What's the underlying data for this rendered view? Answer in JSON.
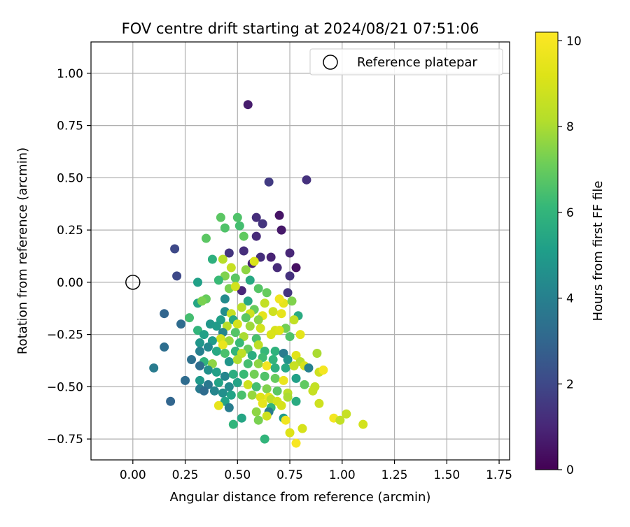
{
  "chart_data": {
    "type": "scatter",
    "title": "FOV centre drift starting at 2024/08/21 07:51:06",
    "xlabel": "Angular distance from reference (arcmin)",
    "ylabel": "Rotation from reference (arcmin)",
    "xlim": [
      -0.2,
      1.8
    ],
    "ylim": [
      -0.85,
      1.15
    ],
    "xticks": [
      0.0,
      0.25,
      0.5,
      0.75,
      1.0,
      1.25,
      1.5,
      1.75
    ],
    "xtick_labels": [
      "0.00",
      "0.25",
      "0.50",
      "0.75",
      "1.00",
      "1.25",
      "1.50",
      "1.75"
    ],
    "yticks": [
      -0.75,
      -0.5,
      -0.25,
      0.0,
      0.25,
      0.5,
      0.75,
      1.0
    ],
    "ytick_labels": [
      "−0.75",
      "−0.50",
      "−0.25",
      "0.00",
      "0.25",
      "0.50",
      "0.75",
      "1.00"
    ],
    "grid": true,
    "legend": {
      "position": "top-right",
      "entries": [
        "Reference platepar"
      ]
    },
    "reference_point": {
      "x": 0.0,
      "y": 0.0
    },
    "colorbar": {
      "label": "Hours from first FF file",
      "cmap": "viridis",
      "range": [
        0,
        10.2
      ],
      "ticks": [
        0,
        2,
        4,
        6,
        8,
        10
      ],
      "tick_labels": [
        "0",
        "2",
        "4",
        "6",
        "8",
        "10"
      ]
    },
    "points": [
      [
        0.55,
        0.85,
        0.7
      ],
      [
        0.65,
        0.48,
        1.6
      ],
      [
        0.83,
        0.49,
        1.3
      ],
      [
        0.59,
        0.31,
        1.2
      ],
      [
        0.7,
        0.32,
        0.5
      ],
      [
        0.62,
        0.28,
        1.4
      ],
      [
        0.71,
        0.25,
        0.6
      ],
      [
        0.53,
        0.15,
        1.2
      ],
      [
        0.61,
        0.12,
        1.2
      ],
      [
        0.66,
        0.12,
        0.9
      ],
      [
        0.75,
        0.14,
        1.0
      ],
      [
        0.46,
        0.14,
        1.4
      ],
      [
        0.69,
        0.07,
        1.1
      ],
      [
        0.78,
        0.07,
        0.4
      ],
      [
        0.57,
        0.09,
        0.9
      ],
      [
        0.75,
        0.03,
        1.3
      ],
      [
        0.59,
        0.22,
        1.1
      ],
      [
        0.2,
        0.16,
        2.0
      ],
      [
        0.21,
        0.03,
        2.0
      ],
      [
        0.42,
        0.31,
        6.8
      ],
      [
        0.5,
        0.31,
        6.6
      ],
      [
        0.44,
        0.26,
        6.6
      ],
      [
        0.51,
        0.27,
        6.4
      ],
      [
        0.53,
        0.22,
        6.9
      ],
      [
        0.35,
        0.21,
        6.8
      ],
      [
        0.38,
        0.11,
        5.8
      ],
      [
        0.43,
        0.11,
        8.2
      ],
      [
        0.47,
        0.07,
        8.6
      ],
      [
        0.54,
        0.06,
        7.6
      ],
      [
        0.58,
        0.1,
        9.1
      ],
      [
        0.44,
        0.03,
        7.4
      ],
      [
        0.49,
        0.02,
        6.8
      ],
      [
        0.41,
        0.01,
        6.2
      ],
      [
        0.56,
        0.01,
        5.5
      ],
      [
        0.31,
        0.0,
        5.2
      ],
      [
        0.46,
        -0.03,
        7.3
      ],
      [
        0.52,
        -0.04,
        1.0
      ],
      [
        0.49,
        -0.02,
        8.9
      ],
      [
        0.6,
        -0.03,
        6.7
      ],
      [
        0.64,
        -0.05,
        7.0
      ],
      [
        0.74,
        -0.05,
        1.4
      ],
      [
        0.44,
        -0.08,
        4.4
      ],
      [
        0.31,
        -0.1,
        5.4
      ],
      [
        0.35,
        -0.08,
        7.0
      ],
      [
        0.33,
        -0.09,
        7.3
      ],
      [
        0.55,
        -0.09,
        5.5
      ],
      [
        0.63,
        -0.1,
        8.5
      ],
      [
        0.72,
        -0.1,
        9.5
      ],
      [
        0.7,
        -0.08,
        9.8
      ],
      [
        0.76,
        -0.09,
        7.4
      ],
      [
        0.52,
        -0.12,
        8.3
      ],
      [
        0.58,
        -0.13,
        7.0
      ],
      [
        0.67,
        -0.14,
        8.8
      ],
      [
        0.44,
        -0.14,
        4.5
      ],
      [
        0.47,
        -0.15,
        8.6
      ],
      [
        0.56,
        -0.15,
        8.8
      ],
      [
        0.62,
        -0.16,
        9.4
      ],
      [
        0.71,
        -0.15,
        9.5
      ],
      [
        0.79,
        -0.16,
        5.6
      ],
      [
        0.42,
        -0.18,
        5.2
      ],
      [
        0.48,
        -0.18,
        5.5
      ],
      [
        0.54,
        -0.17,
        6.8
      ],
      [
        0.6,
        -0.18,
        7.5
      ],
      [
        0.77,
        -0.18,
        8.5
      ],
      [
        0.5,
        -0.2,
        9.0
      ],
      [
        0.45,
        -0.21,
        8.2
      ],
      [
        0.37,
        -0.2,
        4.8
      ],
      [
        0.4,
        -0.21,
        5.0
      ],
      [
        0.27,
        -0.17,
        6.4
      ],
      [
        0.23,
        -0.2,
        3.2
      ],
      [
        0.56,
        -0.21,
        7.8
      ],
      [
        0.61,
        -0.22,
        8.9
      ],
      [
        0.68,
        -0.23,
        9.0
      ],
      [
        0.73,
        -0.22,
        7.2
      ],
      [
        0.31,
        -0.23,
        6.0
      ],
      [
        0.34,
        -0.25,
        5.2
      ],
      [
        0.43,
        -0.24,
        4.2
      ],
      [
        0.49,
        -0.24,
        6.7
      ],
      [
        0.53,
        -0.26,
        8.0
      ],
      [
        0.59,
        -0.27,
        6.5
      ],
      [
        0.66,
        -0.25,
        9.1
      ],
      [
        0.7,
        -0.23,
        9.2
      ],
      [
        0.75,
        -0.26,
        6.6
      ],
      [
        0.8,
        -0.25,
        9.4
      ],
      [
        0.42,
        -0.27,
        8.9
      ],
      [
        0.46,
        -0.28,
        7.8
      ],
      [
        0.51,
        -0.29,
        6.2
      ],
      [
        0.38,
        -0.28,
        5.0
      ],
      [
        0.32,
        -0.29,
        4.8
      ],
      [
        0.43,
        -0.3,
        9.6
      ],
      [
        0.36,
        -0.31,
        4.3
      ],
      [
        0.55,
        -0.32,
        7.0
      ],
      [
        0.6,
        -0.3,
        8.4
      ],
      [
        0.63,
        -0.33,
        6.1
      ],
      [
        0.68,
        -0.33,
        5.9
      ],
      [
        0.72,
        -0.34,
        3.8
      ],
      [
        0.78,
        -0.35,
        9.3
      ],
      [
        0.88,
        -0.34,
        8.0
      ],
      [
        0.32,
        -0.33,
        4.0
      ],
      [
        0.4,
        -0.33,
        5.5
      ],
      [
        0.44,
        -0.34,
        6.5
      ],
      [
        0.49,
        -0.33,
        6.0
      ],
      [
        0.52,
        -0.34,
        8.4
      ],
      [
        0.57,
        -0.35,
        5.7
      ],
      [
        0.62,
        -0.36,
        6.3
      ],
      [
        0.67,
        -0.37,
        6.0
      ],
      [
        0.74,
        -0.37,
        4.7
      ],
      [
        0.8,
        -0.38,
        8.2
      ],
      [
        0.34,
        -0.38,
        5.9
      ],
      [
        0.38,
        -0.39,
        7.6
      ],
      [
        0.46,
        -0.38,
        4.8
      ],
      [
        0.5,
        -0.37,
        8.1
      ],
      [
        0.55,
        -0.39,
        6.4
      ],
      [
        0.6,
        -0.39,
        7.6
      ],
      [
        0.64,
        -0.4,
        9.9
      ],
      [
        0.68,
        -0.41,
        5.8
      ],
      [
        0.73,
        -0.41,
        5.5
      ],
      [
        0.77,
        -0.4,
        8.6
      ],
      [
        0.82,
        -0.4,
        9.0
      ],
      [
        0.84,
        -0.41,
        4.0
      ],
      [
        0.89,
        -0.43,
        8.8
      ],
      [
        0.91,
        -0.42,
        9.9
      ],
      [
        0.1,
        -0.41,
        3.8
      ],
      [
        0.28,
        -0.37,
        3.4
      ],
      [
        0.32,
        -0.4,
        3.3
      ],
      [
        0.25,
        -0.47,
        3.2
      ],
      [
        0.36,
        -0.42,
        4.6
      ],
      [
        0.4,
        -0.43,
        5.2
      ],
      [
        0.44,
        -0.45,
        4.2
      ],
      [
        0.48,
        -0.44,
        5.7
      ],
      [
        0.53,
        -0.44,
        6.2
      ],
      [
        0.58,
        -0.44,
        7.2
      ],
      [
        0.63,
        -0.45,
        6.6
      ],
      [
        0.68,
        -0.46,
        7.0
      ],
      [
        0.72,
        -0.47,
        9.6
      ],
      [
        0.78,
        -0.46,
        5.2
      ],
      [
        0.82,
        -0.49,
        6.9
      ],
      [
        0.87,
        -0.5,
        8.5
      ],
      [
        0.32,
        -0.47,
        4.9
      ],
      [
        0.36,
        -0.49,
        3.7
      ],
      [
        0.41,
        -0.48,
        5.3
      ],
      [
        0.46,
        -0.5,
        4.4
      ],
      [
        0.5,
        -0.48,
        5.3
      ],
      [
        0.55,
        -0.49,
        8.8
      ],
      [
        0.59,
        -0.5,
        6.4
      ],
      [
        0.64,
        -0.51,
        7.4
      ],
      [
        0.69,
        -0.52,
        6.8
      ],
      [
        0.74,
        -0.53,
        8.3
      ],
      [
        0.86,
        -0.52,
        8.6
      ],
      [
        0.32,
        -0.51,
        3.8
      ],
      [
        0.34,
        -0.52,
        3.2
      ],
      [
        0.39,
        -0.52,
        4.2
      ],
      [
        0.43,
        -0.53,
        4.6
      ],
      [
        0.47,
        -0.54,
        5.3
      ],
      [
        0.52,
        -0.54,
        6.5
      ],
      [
        0.57,
        -0.54,
        7.7
      ],
      [
        0.61,
        -0.55,
        9.2
      ],
      [
        0.65,
        -0.55,
        9.6
      ],
      [
        0.66,
        -0.56,
        8.4
      ],
      [
        0.69,
        -0.57,
        8.9
      ],
      [
        0.74,
        -0.55,
        8.0
      ],
      [
        0.78,
        -0.57,
        5.6
      ],
      [
        0.89,
        -0.58,
        8.8
      ],
      [
        0.18,
        -0.57,
        3.0
      ],
      [
        0.44,
        -0.57,
        5.3
      ],
      [
        0.46,
        -0.6,
        3.9
      ],
      [
        0.41,
        -0.59,
        9.5
      ],
      [
        0.62,
        -0.58,
        9.5
      ],
      [
        0.66,
        -0.6,
        6.0
      ],
      [
        0.71,
        -0.59,
        9.0
      ],
      [
        0.59,
        -0.62,
        7.6
      ],
      [
        0.65,
        -0.62,
        3.8
      ],
      [
        0.6,
        -0.66,
        7.3
      ],
      [
        0.52,
        -0.65,
        5.4
      ],
      [
        0.48,
        -0.68,
        6.0
      ],
      [
        0.64,
        -0.64,
        8.8
      ],
      [
        0.72,
        -0.65,
        5.0
      ],
      [
        0.73,
        -0.66,
        9.8
      ],
      [
        0.96,
        -0.65,
        9.9
      ],
      [
        0.99,
        -0.66,
        8.5
      ],
      [
        1.02,
        -0.63,
        8.6
      ],
      [
        1.1,
        -0.68,
        8.9
      ],
      [
        0.81,
        -0.7,
        9.0
      ],
      [
        0.75,
        -0.72,
        9.2
      ],
      [
        0.63,
        -0.75,
        6.0
      ],
      [
        0.78,
        -0.77,
        10.0
      ],
      [
        0.15,
        -0.31,
        3.3
      ],
      [
        0.15,
        -0.15,
        3.0
      ]
    ]
  }
}
